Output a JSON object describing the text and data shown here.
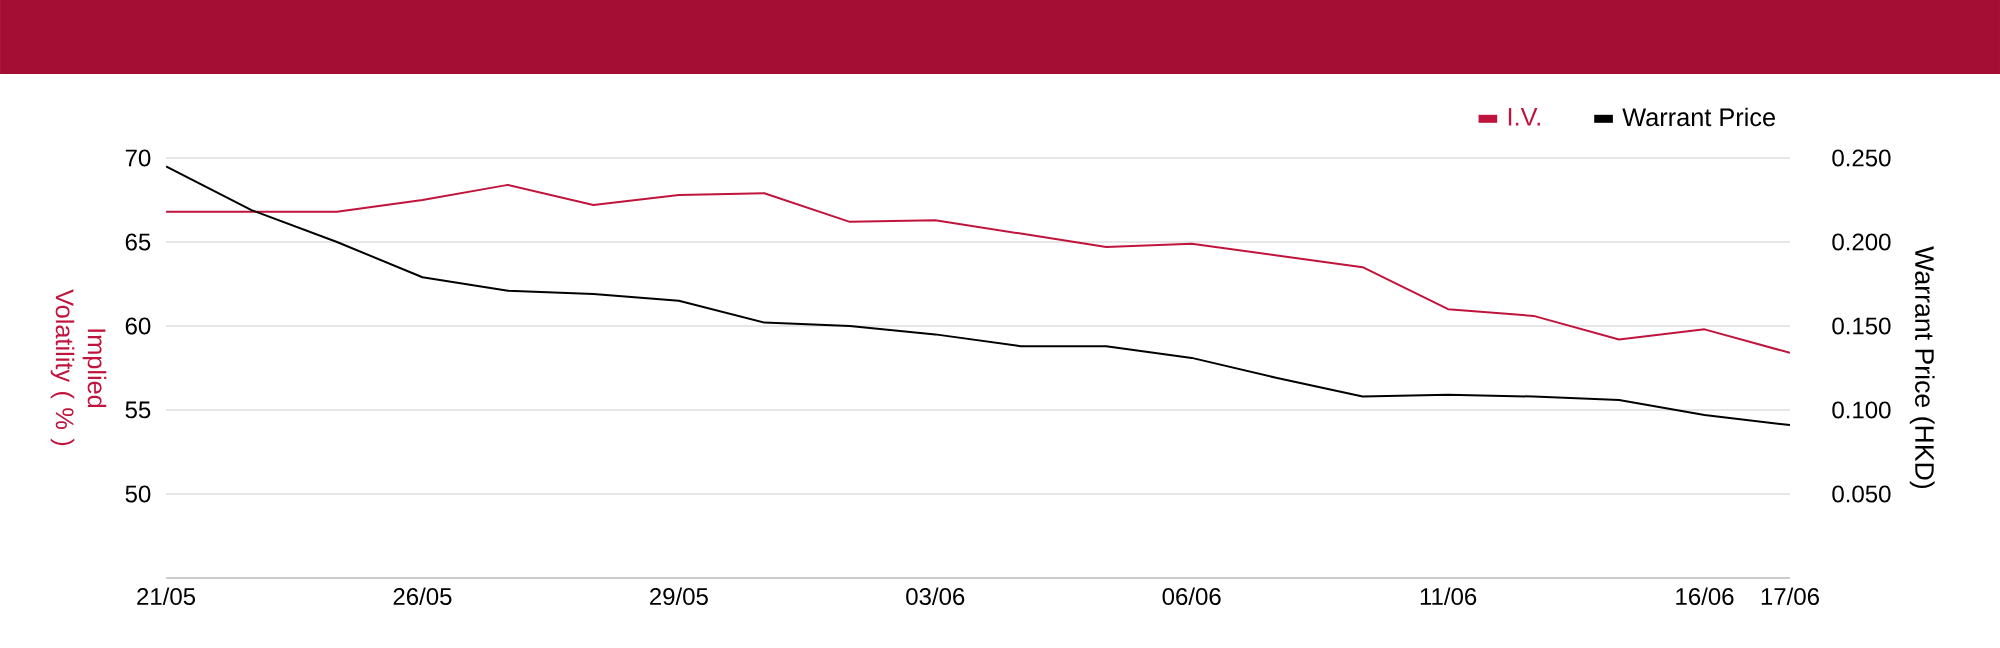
{
  "chart_data": {
    "type": "line",
    "categories": [
      "21/05",
      null,
      null,
      "26/05",
      null,
      null,
      "29/05",
      null,
      null,
      "03/06",
      null,
      null,
      "06/06",
      null,
      null,
      "11/06",
      null,
      null,
      "16/06",
      "17/06"
    ],
    "series": [
      {
        "name": "I.V.",
        "color": "#c0143c",
        "values": [
          66.8,
          66.8,
          66.8,
          67.5,
          68.4,
          67.2,
          67.8,
          67.9,
          66.2,
          66.3,
          65.5,
          64.7,
          64.9,
          64.2,
          63.5,
          61.0,
          60.6,
          59.2,
          59.8,
          58.4
        ]
      },
      {
        "name": "Warrant Price",
        "color": "#000000",
        "axis": "y2",
        "values": [
          0.245,
          0.219,
          0.2,
          0.179,
          0.171,
          0.169,
          0.165,
          0.152,
          0.15,
          0.145,
          0.138,
          0.138,
          0.131,
          0.119,
          0.108,
          0.109,
          0.108,
          0.106,
          0.097,
          0.091
        ]
      }
    ],
    "ylabel": "Implied Volatility ( % )",
    "y2label": "Warrant Price (HKD)",
    "ylim": [
      45,
      70
    ],
    "yticks": [
      50,
      55,
      60,
      65,
      70
    ],
    "y2lim": [
      0,
      0.25
    ],
    "y2ticks": [
      {
        "value": 0.05,
        "label": "0.050"
      },
      {
        "value": 0.1,
        "label": "0.100"
      },
      {
        "value": 0.15,
        "label": "0.150"
      },
      {
        "value": 0.2,
        "label": "0.200"
      },
      {
        "value": 0.25,
        "label": "0.250"
      }
    ],
    "grid": "y",
    "legend": "top right"
  }
}
